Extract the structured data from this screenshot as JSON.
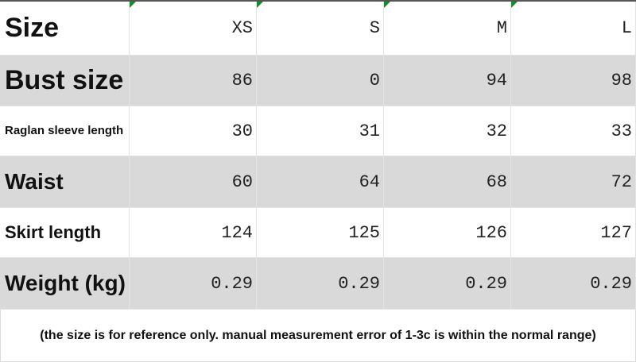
{
  "table": {
    "header": [
      "Size",
      "XS",
      "S",
      "M",
      "L"
    ],
    "rows": [
      [
        "Bust size",
        86,
        0,
        94,
        98
      ],
      [
        "Raglan sleeve length",
        30,
        31,
        32,
        33
      ],
      [
        "Waist",
        60,
        64,
        68,
        72
      ],
      [
        "Skirt length",
        124,
        125,
        126,
        127
      ],
      [
        "Weight (kg)",
        0.29,
        0.29,
        0.29,
        0.29
      ]
    ]
  },
  "note": "(the size is for reference only. manual measurement error of 1-3c is within the normal range)"
}
